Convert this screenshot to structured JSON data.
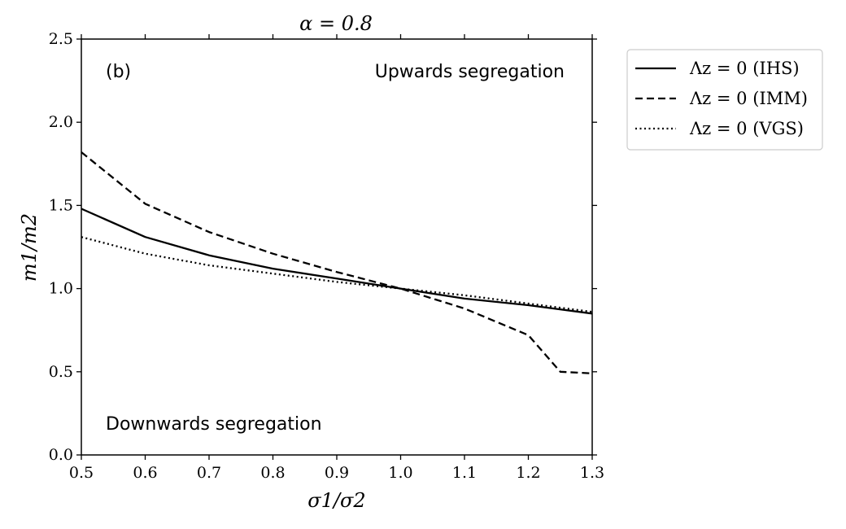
{
  "chart_data": {
    "type": "line",
    "title": "α = 0.8",
    "xlabel": "σ1/σ2",
    "ylabel": "m1/m2",
    "xlim": [
      0.5,
      1.3
    ],
    "ylim": [
      0.0,
      2.5
    ],
    "xticks": [
      "0.5",
      "0.6",
      "0.7",
      "0.8",
      "0.9",
      "1.0",
      "1.1",
      "1.2",
      "1.3"
    ],
    "yticks": [
      "0.0",
      "0.5",
      "1.0",
      "1.5",
      "2.0",
      "2.5"
    ],
    "panel_label": "(b)",
    "annotations": {
      "upper": "Upwards segregation",
      "lower": "Downwards segregation"
    },
    "legend_position": "outside-top-right",
    "series": [
      {
        "name": "Λz = 0 (IHS)",
        "style": "solid",
        "x": [
          0.5,
          0.6,
          0.7,
          0.8,
          0.9,
          1.0,
          1.1,
          1.2,
          1.3
        ],
        "y": [
          1.48,
          1.31,
          1.2,
          1.12,
          1.06,
          1.0,
          0.94,
          0.9,
          0.85
        ]
      },
      {
        "name": "Λz = 0 (IMM)",
        "style": "dashed",
        "x": [
          0.5,
          0.6,
          0.7,
          0.8,
          0.9,
          1.0,
          1.1,
          1.2,
          1.25,
          1.3
        ],
        "y": [
          1.82,
          1.51,
          1.34,
          1.21,
          1.1,
          1.0,
          0.88,
          0.72,
          0.5,
          0.49
        ]
      },
      {
        "name": "Λz = 0 (VGS)",
        "style": "dotted",
        "x": [
          0.5,
          0.6,
          0.7,
          0.8,
          0.9,
          1.0,
          1.1,
          1.2,
          1.3
        ],
        "y": [
          1.31,
          1.21,
          1.14,
          1.09,
          1.04,
          1.0,
          0.96,
          0.91,
          0.86
        ]
      }
    ]
  }
}
